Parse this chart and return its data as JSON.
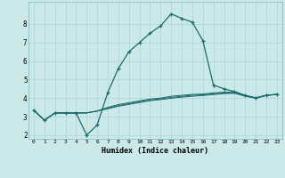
{
  "xlabel": "Humidex (Indice chaleur)",
  "background_color": "#cce9e9",
  "grid_color": "#aad4d4",
  "line_color": "#1a6b6b",
  "xlim": [
    -0.5,
    23.5
  ],
  "ylim": [
    1.8,
    9.2
  ],
  "yticks": [
    2,
    3,
    4,
    5,
    6,
    7,
    8
  ],
  "xticks": [
    0,
    1,
    2,
    3,
    4,
    5,
    6,
    7,
    8,
    9,
    10,
    11,
    12,
    13,
    14,
    15,
    16,
    17,
    18,
    19,
    20,
    21,
    22,
    23
  ],
  "series_main": [
    3.35,
    2.8,
    3.2,
    3.2,
    3.2,
    2.0,
    2.55,
    4.3,
    5.6,
    6.5,
    7.0,
    7.5,
    7.9,
    8.55,
    8.3,
    8.1,
    7.1,
    4.7,
    4.5,
    4.35,
    4.15,
    4.0,
    4.15,
    4.2
  ],
  "series_flat": [
    [
      3.35,
      2.8,
      3.2,
      3.2,
      3.2,
      3.2,
      3.3,
      3.5,
      3.65,
      3.75,
      3.85,
      3.95,
      4.0,
      4.1,
      4.15,
      4.2,
      4.22,
      4.28,
      4.32,
      4.32,
      4.15,
      4.02,
      4.15,
      4.2
    ],
    [
      3.35,
      2.8,
      3.2,
      3.2,
      3.2,
      3.2,
      3.3,
      3.42,
      3.56,
      3.66,
      3.76,
      3.86,
      3.92,
      3.99,
      4.05,
      4.1,
      4.14,
      4.19,
      4.24,
      4.26,
      4.1,
      4.0,
      4.15,
      4.2
    ],
    [
      3.35,
      2.8,
      3.2,
      3.2,
      3.2,
      3.2,
      3.3,
      3.46,
      3.6,
      3.7,
      3.8,
      3.9,
      3.96,
      4.04,
      4.1,
      4.15,
      4.18,
      4.23,
      4.28,
      4.29,
      4.12,
      4.01,
      4.15,
      4.2
    ]
  ]
}
